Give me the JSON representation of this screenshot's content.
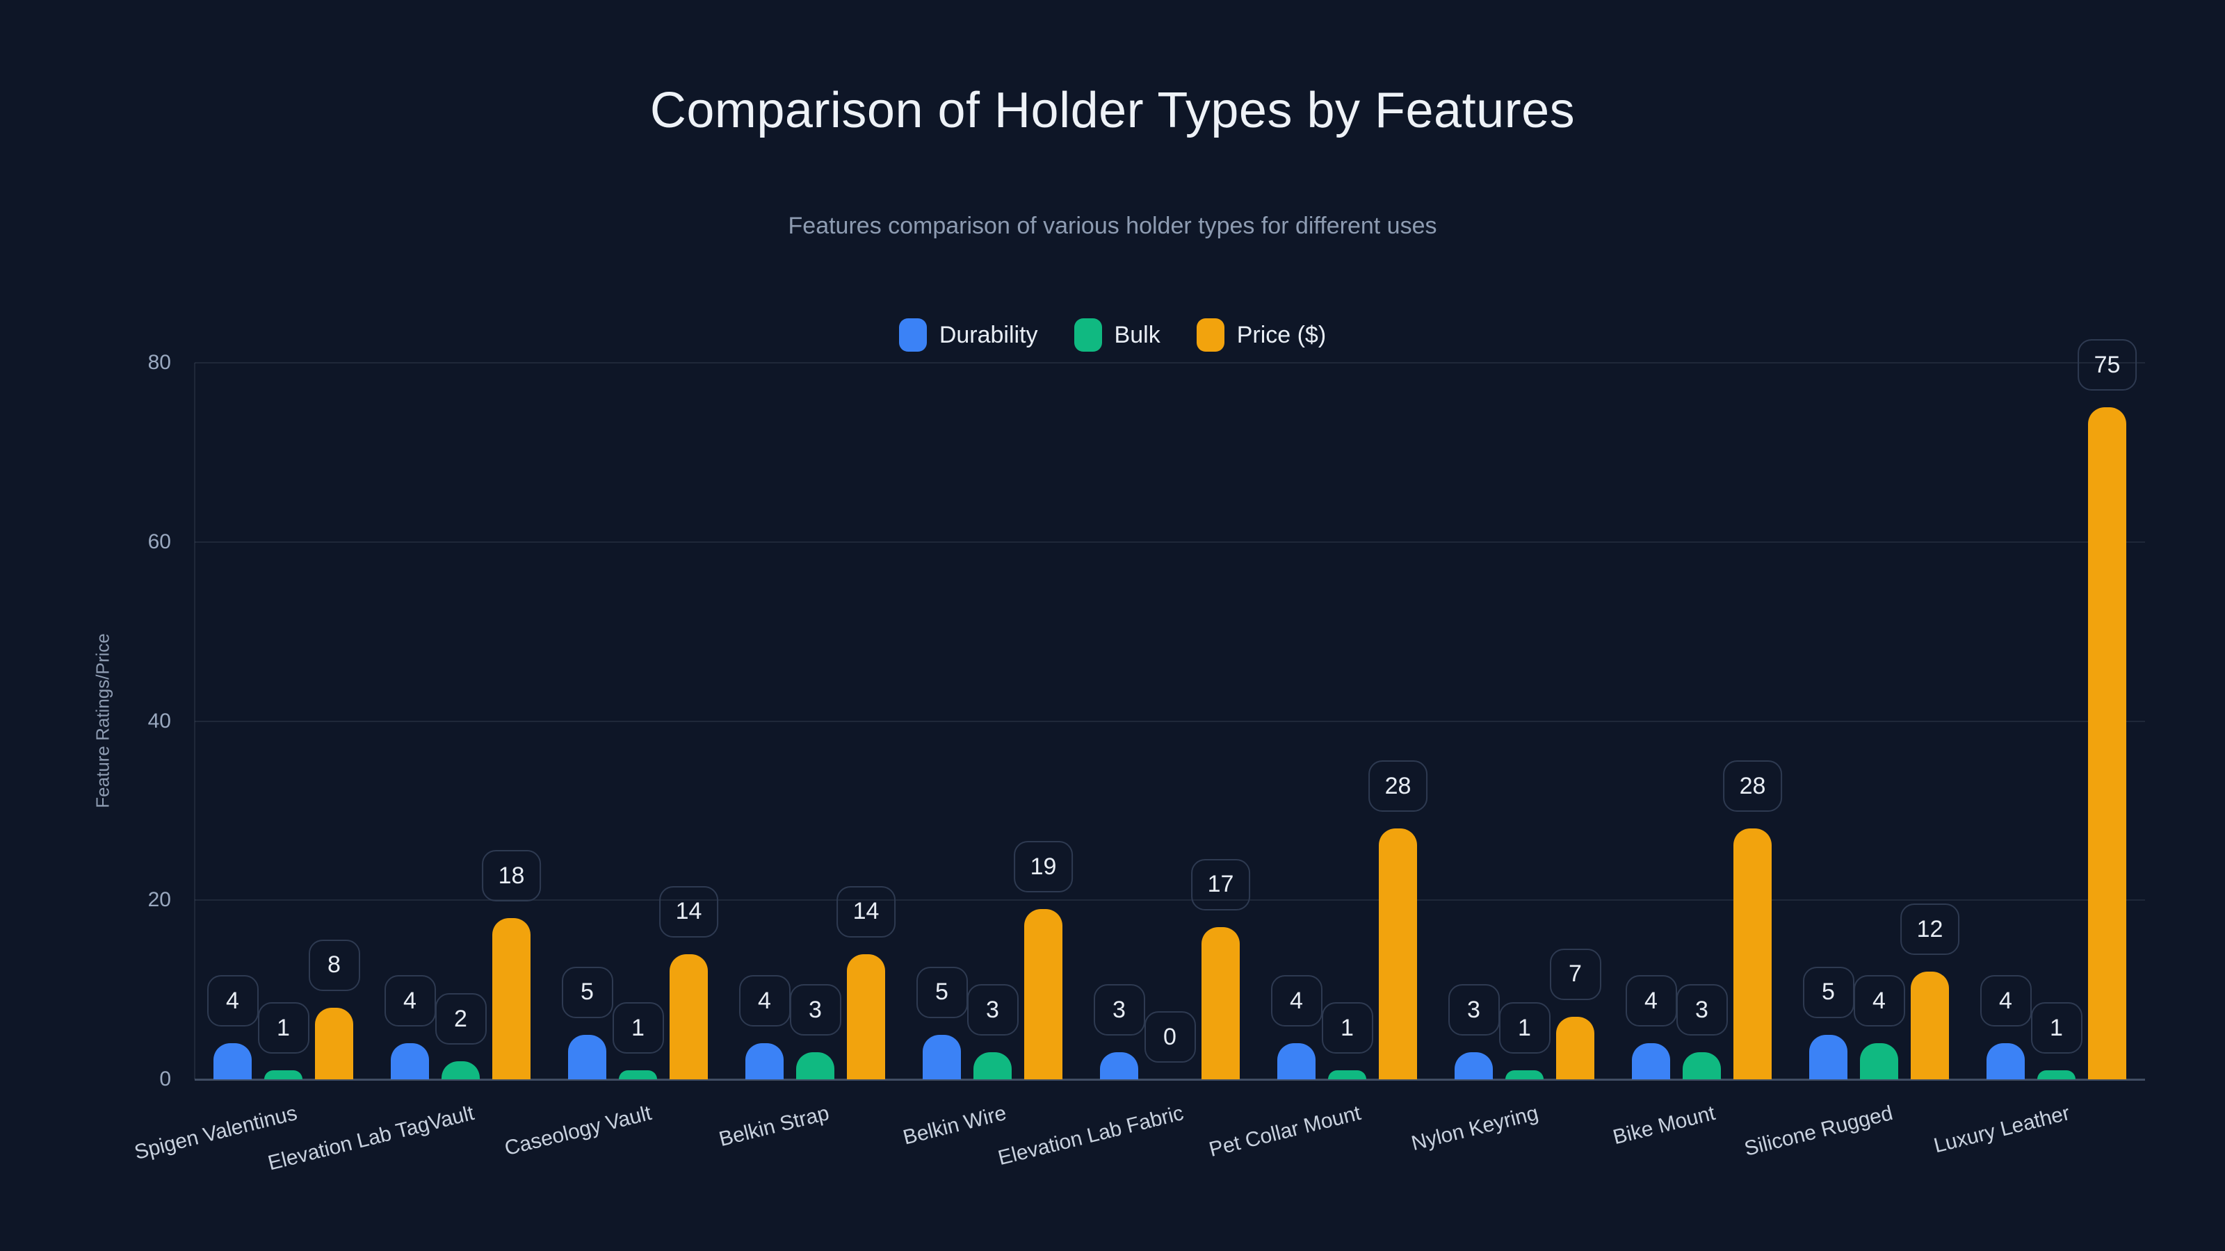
{
  "chart": {
    "title": "Comparison of Holder Types by Features",
    "subtitle": "Features comparison of various holder types for different uses",
    "y_axis_label": "Feature Ratings/Price"
  },
  "colors": {
    "background": "#0e1627",
    "title_text": "#eef2f7",
    "subtitle_text": "#8e9cb2",
    "y_tick_text": "#9aa9c0",
    "x_tick_text": "#c9d2df",
    "value_label_text": "#e9eef5",
    "value_label_border": "#2e3a51",
    "gridline": "#232e42",
    "axis_line": "#414d63",
    "series_durability": "#3b82f6",
    "series_bulk": "#10b981",
    "series_price": "#f2a30d"
  },
  "chart_data": {
    "type": "bar",
    "title": "Comparison of Holder Types by Features",
    "subtitle": "Features comparison of various holder types for different uses",
    "xlabel": "",
    "ylabel": "Feature Ratings/Price",
    "ylim": [
      0,
      80
    ],
    "yticks": [
      0,
      20,
      40,
      60,
      80
    ],
    "grid": true,
    "legend_position": "top-center",
    "bar_value_labels": true,
    "categories": [
      "Spigen Valentinus",
      "Elevation Lab TagVault",
      "Caseology Vault",
      "Belkin Strap",
      "Belkin Wire",
      "Elevation Lab Fabric",
      "Pet Collar Mount",
      "Nylon Keyring",
      "Bike Mount",
      "Silicone Rugged",
      "Luxury Leather"
    ],
    "series": [
      {
        "name": "Durability",
        "color": "#3b82f6",
        "values": [
          4,
          4,
          5,
          4,
          5,
          3,
          4,
          3,
          4,
          5,
          4
        ]
      },
      {
        "name": "Bulk",
        "color": "#10b981",
        "values": [
          1,
          2,
          1,
          3,
          3,
          0,
          1,
          1,
          3,
          4,
          1
        ]
      },
      {
        "name": "Price ($)",
        "color": "#f2a30d",
        "values": [
          8,
          18,
          14,
          14,
          19,
          17,
          28,
          7,
          28,
          12,
          75
        ]
      }
    ]
  }
}
